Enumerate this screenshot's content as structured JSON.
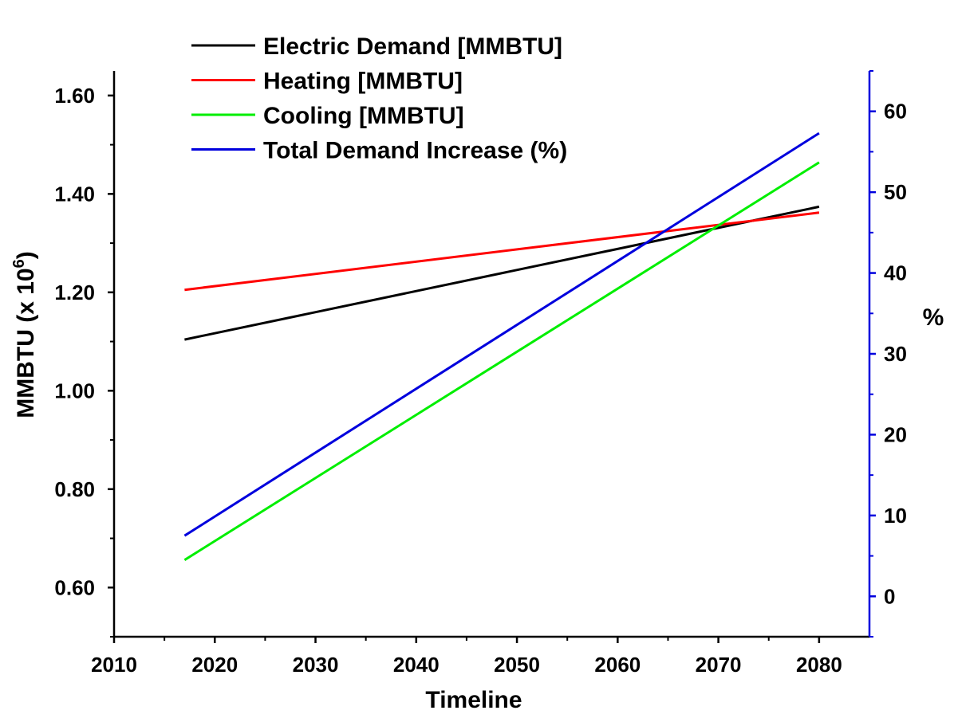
{
  "chart_data": {
    "type": "line",
    "xlabel": "Timeline",
    "ylabel": "MMBTU (x 10",
    "ylabel_sup": "6",
    "ylabel_end": ")",
    "y2label": "%",
    "xlim": [
      2010,
      2085
    ],
    "ylim": [
      0.5,
      1.65
    ],
    "y2lim": [
      -5,
      65
    ],
    "x_ticks": [
      "2010",
      "2020",
      "2030",
      "2040",
      "2050",
      "2060",
      "2070",
      "2080"
    ],
    "y_ticks": [
      "0.60",
      "0.80",
      "1.00",
      "1.20",
      "1.40",
      "1.60"
    ],
    "y2_ticks": [
      "0",
      "10",
      "20",
      "30",
      "40",
      "50",
      "60"
    ],
    "grid": false,
    "legend_position": "top-left",
    "series": [
      {
        "name": "Electric Demand [MMBTU]",
        "axis": "left",
        "color": "#000000",
        "x": [
          2017,
          2080
        ],
        "y": [
          1.104,
          1.374
        ]
      },
      {
        "name": "Heating [MMBTU]",
        "axis": "left",
        "color": "#ff0000",
        "x": [
          2017,
          2080
        ],
        "y": [
          1.205,
          1.362
        ]
      },
      {
        "name": "Cooling [MMBTU]",
        "axis": "left",
        "color": "#00ee00",
        "x": [
          2017,
          2080
        ],
        "y": [
          0.656,
          1.464
        ]
      },
      {
        "name": "Total Demand Increase (%)",
        "axis": "right",
        "color": "#0000dd",
        "x": [
          2017,
          2080
        ],
        "y": [
          7.5,
          57.3
        ]
      }
    ]
  }
}
